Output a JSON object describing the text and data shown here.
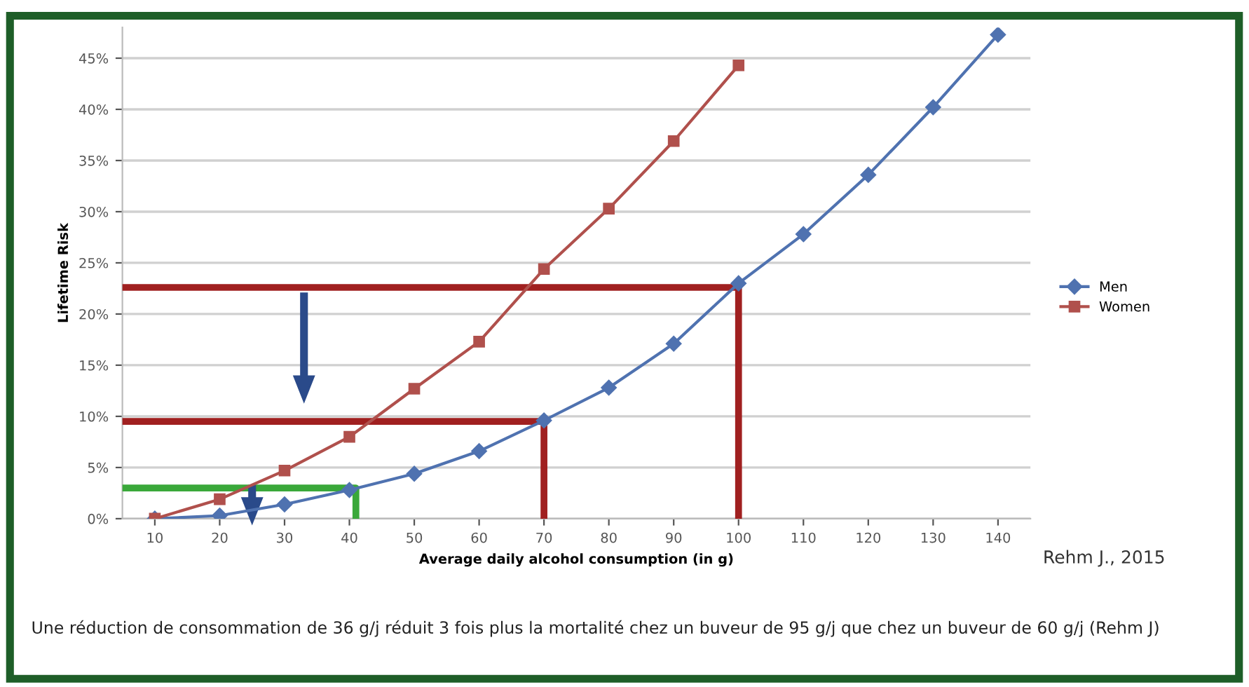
{
  "chart_data": {
    "type": "line",
    "xlabel": "Average daily alcohol consumption (in g)",
    "ylabel": "Lifetime Risk",
    "xlim": [
      5,
      145
    ],
    "xticks": [
      10,
      20,
      30,
      40,
      50,
      60,
      70,
      80,
      90,
      100,
      110,
      120,
      130,
      140
    ],
    "ylim": [
      0,
      48
    ],
    "yticks": [
      {
        "value": 0,
        "label": "0%"
      },
      {
        "value": 5,
        "label": "5%"
      },
      {
        "value": 10,
        "label": "10%"
      },
      {
        "value": 15,
        "label": "15%"
      },
      {
        "value": 20,
        "label": "20%"
      },
      {
        "value": 25,
        "label": "25%"
      },
      {
        "value": 30,
        "label": "30%"
      },
      {
        "value": 35,
        "label": "35%"
      },
      {
        "value": 40,
        "label": "40%"
      },
      {
        "value": 45,
        "label": "45%"
      }
    ],
    "grid": "y",
    "legend": "right",
    "series": [
      {
        "name": "Men",
        "color": "#4f72b0",
        "marker": "diamond",
        "x": [
          10,
          20,
          30,
          40,
          50,
          60,
          70,
          80,
          90,
          100,
          110,
          120,
          130,
          140
        ],
        "values": [
          0,
          0.3,
          1.4,
          2.8,
          4.4,
          6.6,
          9.6,
          12.8,
          17.1,
          23.0,
          27.8,
          33.6,
          40.2,
          47.3
        ]
      },
      {
        "name": "Women",
        "color": "#b0504c",
        "marker": "square",
        "x": [
          10,
          20,
          30,
          40,
          50,
          60,
          70,
          80,
          90,
          100
        ],
        "values": [
          0,
          1.9,
          4.7,
          8.0,
          12.7,
          17.3,
          24.4,
          30.3,
          36.9,
          44.3
        ]
      },
      {
        "color": "#a02020",
        "marker": "none",
        "x": [
          5,
          100,
          100
        ],
        "values": [
          22.6,
          22.6,
          0
        ]
      },
      {
        "color": "#a02020",
        "marker": "none",
        "x": [
          5,
          70,
          70
        ],
        "values": [
          9.5,
          9.5,
          0
        ]
      },
      {
        "color": "#3aa83a",
        "marker": "none",
        "x": [
          5,
          41,
          41
        ],
        "values": [
          3,
          3,
          0
        ]
      }
    ],
    "annotations": [
      "Rehm J., 2015",
      "Une réduction de consommation de 36 g/j réduit 3 fois plus la mortalité chez un buveur de 95 g/j que chez un buveur de 60 g/j (Rehm J)"
    ]
  }
}
